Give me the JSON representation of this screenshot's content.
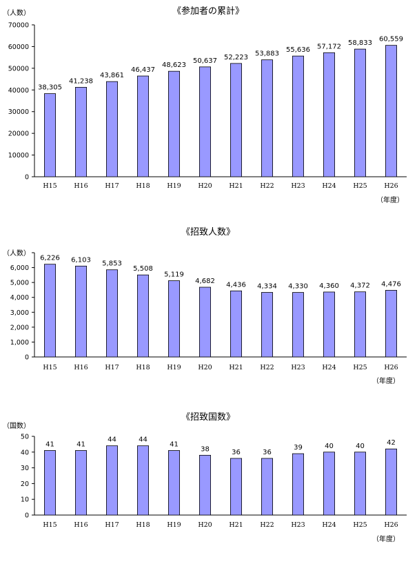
{
  "chart_data": [
    {
      "type": "bar",
      "title": "《参加者の累計》",
      "unit_label": "（人数）",
      "xlabel": "（年度）",
      "categories": [
        "H15",
        "H16",
        "H17",
        "H18",
        "H19",
        "H20",
        "H21",
        "H22",
        "H23",
        "H24",
        "H25",
        "H26"
      ],
      "values": [
        38305,
        41238,
        43861,
        46437,
        48623,
        50637,
        52223,
        53883,
        55636,
        57172,
        58833,
        60559
      ],
      "value_labels": [
        "38,305",
        "41,238",
        "43,861",
        "46,437",
        "48,623",
        "50,637",
        "52,223",
        "53,883",
        "55,636",
        "57,172",
        "58,833",
        "60,559"
      ],
      "ylim": [
        0,
        70000
      ],
      "yticks": [
        "0",
        "10000",
        "20000",
        "30000",
        "40000",
        "50000",
        "60000",
        "70000"
      ],
      "bar_color": "#9999ff",
      "grid": false
    },
    {
      "type": "bar",
      "title": "《招致人数》",
      "unit_label": "（人数）",
      "xlabel": "（年度）",
      "categories": [
        "H15",
        "H16",
        "H17",
        "H18",
        "H19",
        "H20",
        "H21",
        "H22",
        "H23",
        "H24",
        "H25",
        "H26"
      ],
      "values": [
        6226,
        6103,
        5853,
        5508,
        5119,
        4682,
        4436,
        4334,
        4330,
        4360,
        4372,
        4476
      ],
      "value_labels": [
        "6,226",
        "6,103",
        "5,853",
        "5,508",
        "5,119",
        "4,682",
        "4,436",
        "4,334",
        "4,330",
        "4,360",
        "4,372",
        "4,476"
      ],
      "ylim": [
        0,
        7000
      ],
      "yticks": [
        "0",
        "1,000",
        "2,000",
        "3,000",
        "4,000",
        "5,000",
        "6,000",
        ""
      ],
      "bar_color": "#9999ff",
      "grid": false
    },
    {
      "type": "bar",
      "title": "《招致国数》",
      "unit_label": "（国数）",
      "xlabel": "（年度）",
      "categories": [
        "H15",
        "H16",
        "H17",
        "H18",
        "H19",
        "H20",
        "H21",
        "H22",
        "H23",
        "H24",
        "H25",
        "H26"
      ],
      "values": [
        41,
        41,
        44,
        44,
        41,
        38,
        36,
        36,
        39,
        40,
        40,
        42
      ],
      "value_labels": [
        "41",
        "41",
        "44",
        "44",
        "41",
        "38",
        "36",
        "36",
        "39",
        "40",
        "40",
        "42"
      ],
      "ylim": [
        0,
        50
      ],
      "yticks": [
        "0",
        "10",
        "20",
        "30",
        "40",
        "50"
      ],
      "bar_color": "#9999ff",
      "grid": false
    }
  ]
}
